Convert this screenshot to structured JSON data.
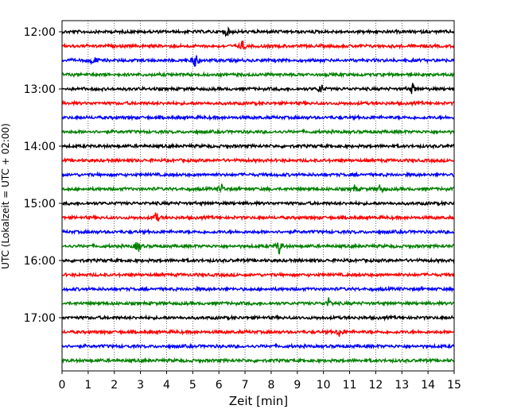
{
  "chart_data": {
    "type": "line",
    "title": "",
    "xlabel": "Zeit  [min]",
    "ylabel": "UTC (Lokalzeit = UTC + 02:00)",
    "xlim": [
      0,
      15
    ],
    "x_ticks": [
      0,
      1,
      2,
      3,
      4,
      5,
      6,
      7,
      8,
      9,
      10,
      11,
      12,
      13,
      14,
      15
    ],
    "x_tick_labels": [
      "0",
      "1",
      "2",
      "3",
      "4",
      "5",
      "6",
      "7",
      "8",
      "9",
      "10",
      "11",
      "12",
      "13",
      "14",
      "15"
    ],
    "y_tick_labels": [
      "12:00",
      "13:00",
      "14:00",
      "15:00",
      "16:00",
      "17:00"
    ],
    "grid": "vertical dotted at each minute",
    "trace_start_times": [
      "12:00",
      "12:15",
      "12:30",
      "12:45",
      "13:00",
      "13:15",
      "13:30",
      "13:45",
      "14:00",
      "14:15",
      "14:30",
      "14:45",
      "15:00",
      "15:15",
      "15:30",
      "15:45",
      "16:00",
      "16:15",
      "16:30",
      "16:45",
      "17:00",
      "17:15",
      "17:30",
      "17:45"
    ],
    "trace_colors": [
      "#000000",
      "#ff0000",
      "#0000ff",
      "#008000"
    ],
    "events": [
      {
        "trace": "12:00",
        "minute": 6.3,
        "amplitude": 0.5
      },
      {
        "trace": "12:15",
        "minute": 6.9,
        "amplitude": 0.6
      },
      {
        "trace": "12:30",
        "minute": 1.2,
        "amplitude": 0.6
      },
      {
        "trace": "12:30",
        "minute": 5.1,
        "amplitude": 0.8
      },
      {
        "trace": "13:00",
        "minute": 9.9,
        "amplitude": 0.6
      },
      {
        "trace": "13:00",
        "minute": 13.4,
        "amplitude": 0.6
      },
      {
        "trace": "14:45",
        "minute": 6.1,
        "amplitude": 0.5
      },
      {
        "trace": "14:45",
        "minute": 11.2,
        "amplitude": 0.4
      },
      {
        "trace": "14:45",
        "minute": 12.2,
        "amplitude": 0.6
      },
      {
        "trace": "15:15",
        "minute": 3.6,
        "amplitude": 0.6
      },
      {
        "trace": "15:45",
        "minute": 2.9,
        "amplitude": 0.8
      },
      {
        "trace": "15:45",
        "minute": 8.3,
        "amplitude": 0.9
      },
      {
        "trace": "16:45",
        "minute": 10.2,
        "amplitude": 0.5
      },
      {
        "trace": "17:15",
        "minute": 10.6,
        "amplitude": 0.5
      }
    ]
  }
}
